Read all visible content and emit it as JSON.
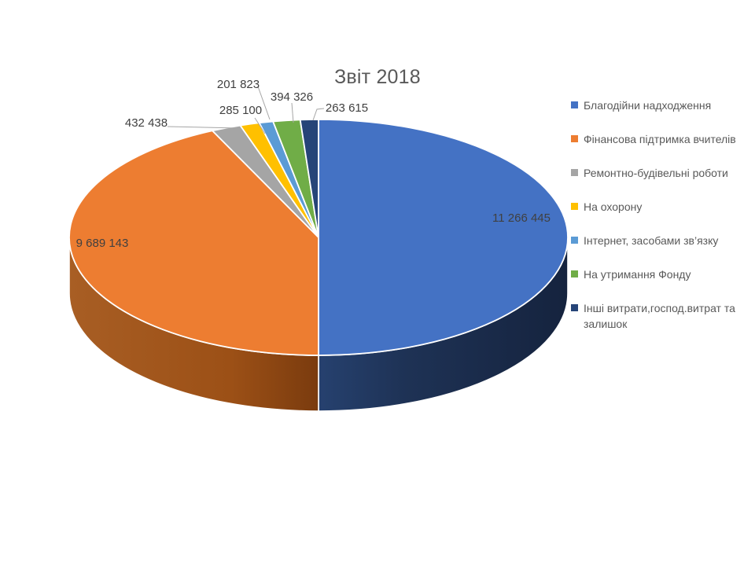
{
  "chart_data": {
    "type": "pie",
    "title": "Звіт 2018",
    "effect_3d": true,
    "start_angle_deg": 0,
    "direction": "clockwise",
    "legend_position": "right",
    "total": 22532890,
    "slices": [
      {
        "label": "Благодійни надходження",
        "value": 11266445,
        "data_label": "11 266 445",
        "color": "#4472C4",
        "side_gradient": [
          "#26416F",
          "#1E3255",
          "#15233E"
        ]
      },
      {
        "label": "Фінансова підтримка вчителів",
        "value": 9689143,
        "data_label": "9 689 143",
        "color": "#ED7D31",
        "side_gradient": [
          "#7A3B0E",
          "#9C5016",
          "#A85E24"
        ]
      },
      {
        "label": "Ремонтно-будівельні роботи",
        "value": 432438,
        "data_label": "432 438",
        "color": "#A5A5A5",
        "side_color": "#636363"
      },
      {
        "label": "На охорону",
        "value": 285100,
        "data_label": "285 100",
        "color": "#FFC000",
        "side_color": "#997300"
      },
      {
        "label": "Інтернет, засобами зв’язку",
        "value": 201823,
        "data_label": "201 823",
        "color": "#5B9BD5",
        "side_color": "#255E91"
      },
      {
        "label": "На утримання Фонду",
        "value": 394326,
        "data_label": "394 326",
        "color": "#70AD47",
        "side_color": "#43682B"
      },
      {
        "label": "Інші витрати,господ.витрат та залишок",
        "value": 263615,
        "data_label": "263 615",
        "color": "#264478",
        "side_color": "#17294A"
      }
    ],
    "text_colors": {
      "title": "#595959",
      "legend": "#595959",
      "data_label": "#404040",
      "leader_line": "#A6A6A6"
    }
  }
}
